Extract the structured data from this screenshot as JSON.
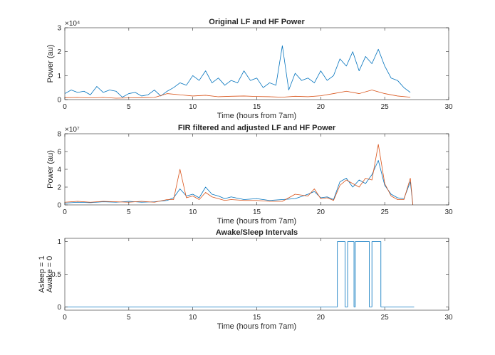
{
  "chart_data": [
    {
      "type": "line",
      "title": "Original LF and HF Power",
      "xlabel": "Time (hours from 7am)",
      "ylabel": "Power (au)",
      "exponent_label": "×10⁴",
      "xlim": [
        0,
        30
      ],
      "ylim": [
        0,
        30000
      ],
      "xticks": [
        0,
        5,
        10,
        15,
        20,
        25,
        30
      ],
      "yticks": [
        0,
        10000,
        20000,
        30000
      ],
      "ytick_labels": [
        "0",
        "1",
        "2",
        "3"
      ],
      "grid": false,
      "series": [
        {
          "color": "#0072BD",
          "x": [
            0,
            0.5,
            1,
            1.5,
            2,
            2.5,
            3,
            3.5,
            4,
            4.5,
            5,
            5.5,
            6,
            6.5,
            7,
            7.5,
            8,
            8.5,
            9,
            9.5,
            10,
            10.5,
            11,
            11.5,
            12,
            12.5,
            13,
            13.5,
            14,
            14.5,
            15,
            15.5,
            16,
            16.5,
            17,
            17.5,
            18,
            18.5,
            19,
            19.5,
            20,
            20.5,
            21,
            21.5,
            22,
            22.5,
            23,
            23.5,
            24,
            24.5,
            25,
            25.5,
            26,
            26.5,
            27
          ],
          "y": [
            2500,
            4000,
            3000,
            3500,
            2000,
            5500,
            3000,
            4000,
            3500,
            1000,
            2500,
            3000,
            1500,
            2000,
            4000,
            1500,
            3500,
            5000,
            7000,
            6000,
            10000,
            8000,
            12000,
            7000,
            9000,
            6000,
            8000,
            7000,
            12000,
            8000,
            9000,
            5000,
            7000,
            6000,
            22500,
            4000,
            11000,
            8000,
            9000,
            7000,
            12000,
            8000,
            10000,
            17000,
            14000,
            20000,
            12000,
            18000,
            15000,
            21000,
            14000,
            9000,
            8000,
            5000,
            3000
          ]
        },
        {
          "color": "#D95319",
          "x": [
            0,
            1,
            2,
            3,
            4,
            5,
            6,
            7,
            8,
            9,
            10,
            11,
            12,
            13,
            14,
            15,
            16,
            17,
            18,
            19,
            20,
            21,
            22,
            23,
            24,
            25,
            26,
            27
          ],
          "y": [
            800,
            900,
            700,
            900,
            600,
            700,
            800,
            900,
            2500,
            2000,
            1500,
            1800,
            1200,
            1400,
            1500,
            1300,
            1200,
            1000,
            1400,
            1200,
            1600,
            2500,
            3500,
            2500,
            4000,
            2500,
            1500,
            1000
          ]
        }
      ]
    },
    {
      "type": "line",
      "title": "FIR filtered and adjusted LF and HF Power",
      "xlabel": "Time (hours from 7am)",
      "ylabel": "Power (au)",
      "exponent_label": "×10⁷",
      "xlim": [
        0,
        30
      ],
      "ylim": [
        0,
        80000000
      ],
      "xticks": [
        0,
        5,
        10,
        15,
        20,
        25,
        30
      ],
      "yticks": [
        0,
        20000000,
        40000000,
        60000000,
        80000000
      ],
      "ytick_labels": [
        "0",
        "2",
        "4",
        "6",
        "8"
      ],
      "grid": false,
      "series": [
        {
          "color": "#0072BD",
          "x": [
            0,
            1,
            2,
            3,
            4,
            5,
            6,
            7,
            8,
            8.5,
            9,
            9.5,
            10,
            10.5,
            11,
            11.5,
            12,
            12.5,
            13,
            14,
            15,
            16,
            17,
            18,
            19,
            19.5,
            20,
            20.5,
            21,
            21.5,
            22,
            22.5,
            23,
            23.5,
            24,
            24.5,
            25,
            25.5,
            26,
            26.5,
            27,
            27.2
          ],
          "y": [
            2000000,
            3000000,
            2500000,
            3500000,
            3000000,
            4000000,
            3000000,
            3500000,
            5000000,
            8000000,
            18000000,
            10000000,
            12000000,
            8000000,
            20000000,
            12000000,
            10000000,
            7000000,
            9000000,
            6000000,
            7000000,
            5000000,
            6000000,
            7000000,
            12000000,
            15000000,
            8000000,
            9000000,
            6000000,
            26000000,
            30000000,
            20000000,
            28000000,
            24000000,
            34000000,
            50000000,
            22000000,
            12000000,
            8000000,
            7000000,
            26000000,
            0
          ]
        },
        {
          "color": "#D95319",
          "x": [
            0,
            1,
            2,
            3,
            4,
            5,
            6,
            7,
            8,
            8.5,
            9,
            9.5,
            10,
            10.5,
            11,
            11.5,
            12,
            12.5,
            13,
            14,
            15,
            16,
            17,
            18,
            19,
            19.5,
            20,
            20.5,
            21,
            21.5,
            22,
            22.5,
            23,
            23.5,
            24,
            24.5,
            25,
            25.5,
            26,
            26.5,
            27,
            27.2
          ],
          "y": [
            3000000,
            4000000,
            3000000,
            4000000,
            3500000,
            3000000,
            4000000,
            3000000,
            6000000,
            6000000,
            40000000,
            8000000,
            10000000,
            6000000,
            14000000,
            9000000,
            7000000,
            5000000,
            6000000,
            5000000,
            5000000,
            4000000,
            4000000,
            12000000,
            10000000,
            18000000,
            7000000,
            8000000,
            5000000,
            22000000,
            28000000,
            24000000,
            20000000,
            30000000,
            28000000,
            68000000,
            24000000,
            10000000,
            6000000,
            6000000,
            30000000,
            0
          ]
        }
      ]
    },
    {
      "type": "line",
      "title": "Awake/Sleep Intervals",
      "xlabel": "Time (hours from 7am)",
      "ylabel": "Awake = 0",
      "ylabel2": "Asleep = 1",
      "xlim": [
        0,
        30
      ],
      "ylim": [
        -0.05,
        1.05
      ],
      "xticks": [
        0,
        5,
        10,
        15,
        20,
        25,
        30
      ],
      "yticks": [
        0,
        0.5,
        1
      ],
      "ytick_labels": [
        "0",
        "0.5",
        "1"
      ],
      "grid": false,
      "series": [
        {
          "color": "#0072BD",
          "step": true,
          "x": [
            0,
            21.3,
            21.3,
            21.9,
            21.9,
            22.1,
            22.1,
            22.6,
            22.6,
            22.7,
            22.7,
            23.8,
            23.8,
            24,
            24,
            24.7,
            24.7,
            27.3
          ],
          "y": [
            0,
            0,
            1,
            1,
            0,
            0,
            1,
            1,
            0,
            0,
            1,
            1,
            0,
            0,
            1,
            1,
            0,
            0
          ]
        }
      ]
    }
  ]
}
